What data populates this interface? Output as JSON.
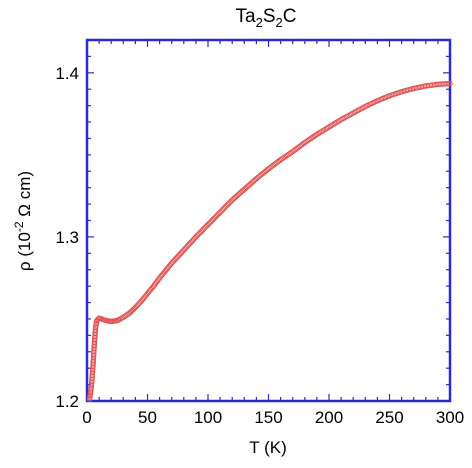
{
  "chart_data": {
    "type": "scatter",
    "title": {
      "base": "Ta",
      "sub1": "2",
      "mid": "S",
      "sub2": "2",
      "tail": "C"
    },
    "xlabel": "T (K)",
    "ylabel": {
      "pre": "ρ (10",
      "sup": "-2",
      "post": " Ω cm)"
    },
    "xlim": [
      0,
      300
    ],
    "ylim": [
      1.2,
      1.42
    ],
    "xticks": [
      0,
      50,
      100,
      150,
      200,
      250,
      300
    ],
    "xtick_labels": [
      "0",
      "50",
      "100",
      "150",
      "200",
      "250",
      "300"
    ],
    "yticks": [
      1.2,
      1.3,
      1.4
    ],
    "ytick_labels": [
      "1.2",
      "1.3",
      "1.4"
    ],
    "grid": false,
    "marker": "open-circle",
    "colors": {
      "marker": "#e05050",
      "frame": "#2a2ad0",
      "text": "#000000"
    },
    "series": [
      {
        "points": [
          [
            2,
            1.201
          ],
          [
            3,
            1.205
          ],
          [
            4,
            1.212
          ],
          [
            5,
            1.222
          ],
          [
            6,
            1.234
          ],
          [
            7,
            1.244
          ],
          [
            8,
            1.249
          ],
          [
            10,
            1.2505
          ],
          [
            12,
            1.25
          ],
          [
            14,
            1.2495
          ],
          [
            16,
            1.249
          ],
          [
            18,
            1.2487
          ],
          [
            20,
            1.2485
          ],
          [
            22,
            1.2487
          ],
          [
            25,
            1.249
          ],
          [
            30,
            1.251
          ],
          [
            35,
            1.2535
          ],
          [
            40,
            1.257
          ],
          [
            45,
            1.261
          ],
          [
            50,
            1.2655
          ],
          [
            55,
            1.27
          ],
          [
            60,
            1.275
          ],
          [
            65,
            1.2795
          ],
          [
            70,
            1.284
          ],
          [
            75,
            1.288
          ],
          [
            80,
            1.292
          ],
          [
            90,
            1.3
          ],
          [
            100,
            1.3075
          ],
          [
            110,
            1.315
          ],
          [
            120,
            1.3225
          ],
          [
            130,
            1.329
          ],
          [
            140,
            1.3355
          ],
          [
            150,
            1.3415
          ],
          [
            160,
            1.347
          ],
          [
            170,
            1.352
          ],
          [
            180,
            1.3575
          ],
          [
            190,
            1.3625
          ],
          [
            200,
            1.367
          ],
          [
            210,
            1.3715
          ],
          [
            220,
            1.3755
          ],
          [
            230,
            1.3795
          ],
          [
            240,
            1.383
          ],
          [
            250,
            1.386
          ],
          [
            260,
            1.3885
          ],
          [
            270,
            1.3905
          ],
          [
            280,
            1.392
          ],
          [
            290,
            1.393
          ],
          [
            300,
            1.3935
          ]
        ]
      }
    ]
  }
}
